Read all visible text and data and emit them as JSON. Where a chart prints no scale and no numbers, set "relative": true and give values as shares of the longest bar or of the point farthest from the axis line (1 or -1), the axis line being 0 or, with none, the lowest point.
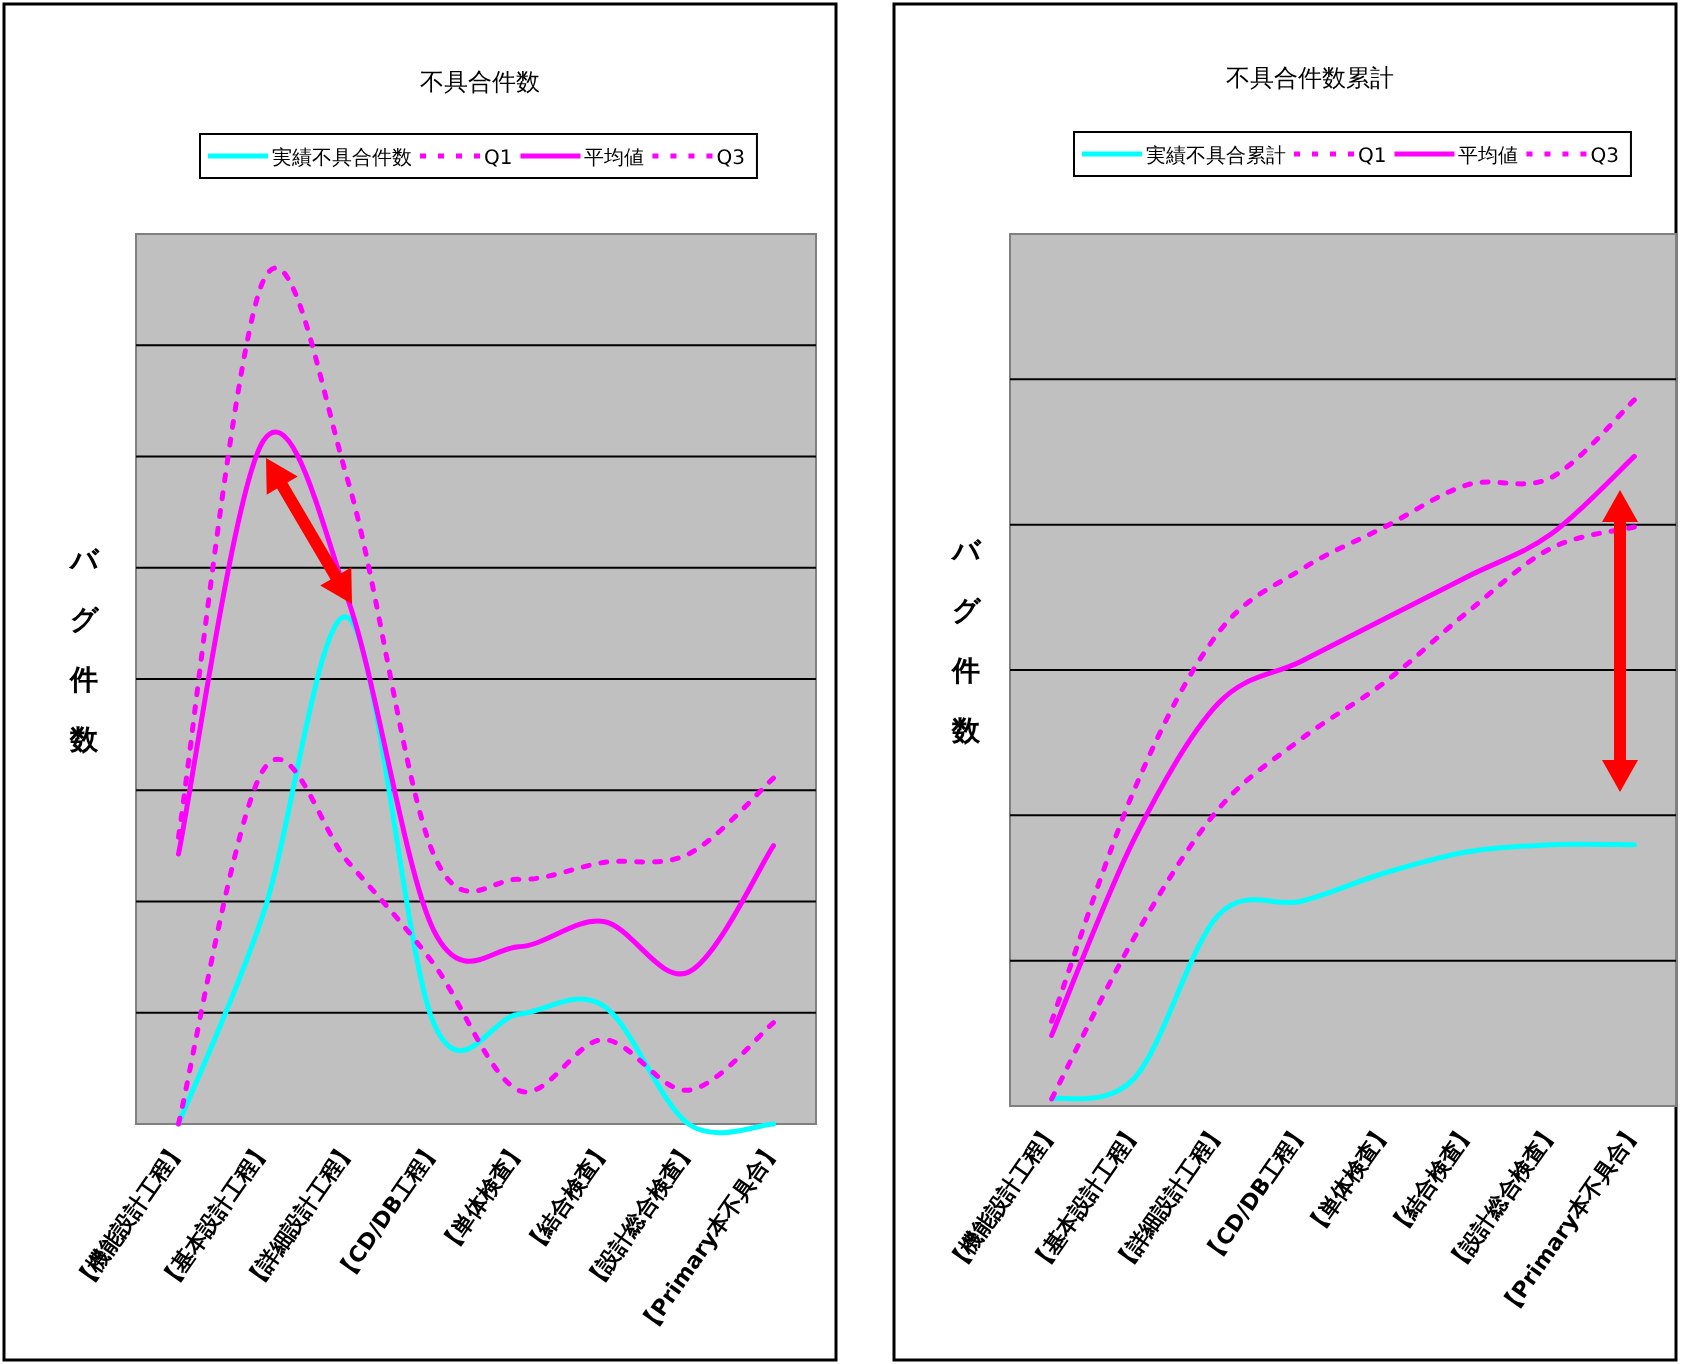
{
  "chart_data": [
    {
      "type": "line",
      "title": "不具合件数",
      "ylabel": "バグ件数",
      "relative": true,
      "grid": "y",
      "legend": "top",
      "categories": [
        "【機能設計工程】",
        "【基本設計工程】",
        "【詳細設計工程】",
        "【CD/DB工程】",
        "【単体検査】",
        "【結合検査】",
        "【設計総合検査】",
        "【Primary本不具合】"
      ],
      "series": [
        {
          "name": "実績不具合件数",
          "color": "#00ffff",
          "line_style": "solid",
          "values": [
            0,
            0.25,
            0.6,
            0.12,
            0.13,
            0.14,
            0.0,
            0.0
          ]
        },
        {
          "name": "Q1",
          "color": "#ff00ff",
          "line_style": "dotted",
          "values": [
            0,
            0.42,
            0.31,
            0.19,
            0.04,
            0.1,
            0.04,
            0.12
          ]
        },
        {
          "name": "平均値",
          "color": "#ff00ff",
          "line_style": "solid",
          "values": [
            0.32,
            0.81,
            0.62,
            0.23,
            0.21,
            0.24,
            0.18,
            0.33
          ]
        },
        {
          "name": "Q3",
          "color": "#ff00ff",
          "line_style": "dotted",
          "values": [
            0.34,
            1,
            0.76,
            0.32,
            0.29,
            0.31,
            0.32,
            0.41
          ]
        }
      ]
    },
    {
      "type": "line",
      "title": "不具合件数累計",
      "ylabel": "バグ件数",
      "relative": true,
      "grid": "y",
      "legend": "top",
      "categories": [
        "【機能設計工程】",
        "【基本設計工程】",
        "【詳細設計工程】",
        "【CD/DB工程】",
        "【単体検査】",
        "【結合検査】",
        "【設計総合検査】",
        "【Primary本不具合】"
      ],
      "series": [
        {
          "name": "実績不具合累計",
          "color": "#00ffff",
          "line_style": "solid",
          "values": [
            0.01,
            0.04,
            0.27,
            0.29,
            0.33,
            0.36,
            0.37,
            0.37
          ]
        },
        {
          "name": "Q1",
          "color": "#ff00ff",
          "line_style": "dotted",
          "values": [
            0.01,
            0.24,
            0.42,
            0.52,
            0.6,
            0.7,
            0.79,
            0.82
          ]
        },
        {
          "name": "平均値",
          "color": "#ff00ff",
          "line_style": "solid",
          "values": [
            0.1,
            0.38,
            0.57,
            0.63,
            0.69,
            0.75,
            0.81,
            0.92
          ]
        },
        {
          "name": "Q3",
          "color": "#ff00ff",
          "line_style": "dotted",
          "values": [
            0.12,
            0.45,
            0.67,
            0.76,
            0.82,
            0.88,
            0.89,
            1
          ]
        }
      ]
    }
  ]
}
